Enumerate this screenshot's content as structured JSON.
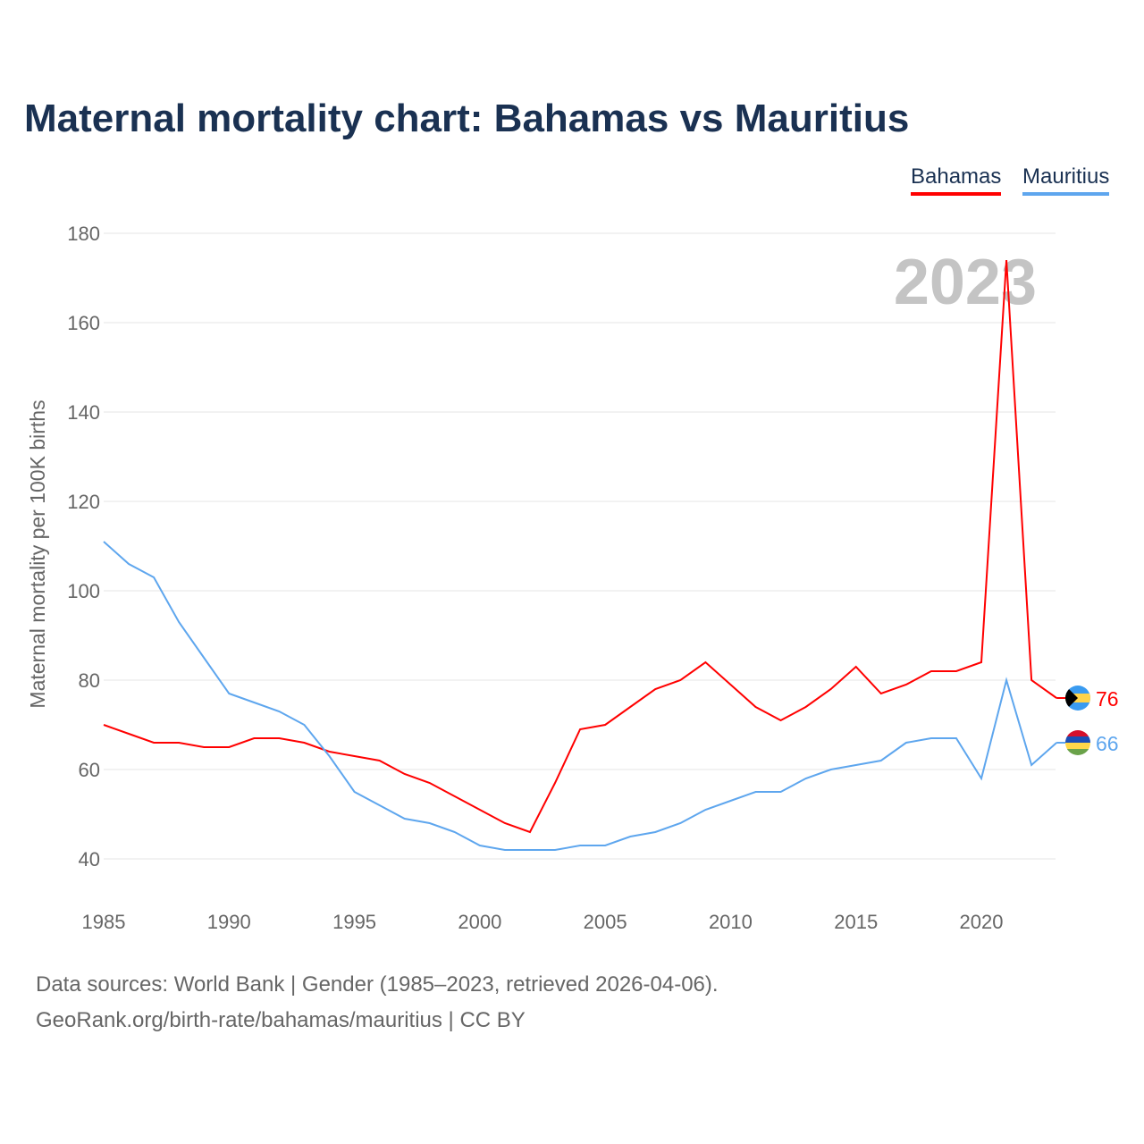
{
  "title": "Maternal mortality chart: Bahamas vs Mauritius",
  "year_watermark": "2023",
  "footer": {
    "line1": "Data sources: World Bank | Gender (1985–2023, retrieved 2026-04-06).",
    "line2": "GeoRank.org/birth-rate/bahamas/mauritius | CC BY"
  },
  "chart_data": {
    "type": "line",
    "title": "Maternal mortality chart: Bahamas vs Mauritius",
    "ylabel": "Maternal mortality per 100K births",
    "xlabel": "",
    "xlim": [
      1985,
      2023
    ],
    "ylim": [
      40,
      180
    ],
    "yticks": [
      40,
      60,
      80,
      100,
      120,
      140,
      160,
      180
    ],
    "xticks": [
      1985,
      1990,
      1995,
      2000,
      2005,
      2010,
      2015,
      2020
    ],
    "legend": "top-right",
    "x": [
      1985,
      1986,
      1987,
      1988,
      1989,
      1990,
      1991,
      1992,
      1993,
      1994,
      1995,
      1996,
      1997,
      1998,
      1999,
      2000,
      2001,
      2002,
      2003,
      2004,
      2005,
      2006,
      2007,
      2008,
      2009,
      2010,
      2011,
      2012,
      2013,
      2014,
      2015,
      2016,
      2017,
      2018,
      2019,
      2020,
      2021,
      2022,
      2023
    ],
    "series": [
      {
        "name": "Bahamas",
        "color": "#ff0000",
        "end_label": "76",
        "values": [
          70,
          68,
          66,
          66,
          65,
          65,
          67,
          67,
          66,
          64,
          63,
          62,
          59,
          57,
          54,
          51,
          48,
          46,
          57,
          69,
          70,
          74,
          78,
          80,
          84,
          79,
          74,
          71,
          74,
          78,
          83,
          77,
          79,
          82,
          82,
          84,
          174,
          80,
          76
        ]
      },
      {
        "name": "Mauritius",
        "color": "#5ea6ee",
        "end_label": "66",
        "values": [
          111,
          106,
          103,
          93,
          85,
          77,
          75,
          73,
          70,
          63,
          55,
          52,
          49,
          48,
          46,
          43,
          42,
          42,
          42,
          43,
          43,
          45,
          46,
          48,
          51,
          53,
          55,
          55,
          58,
          60,
          61,
          62,
          66,
          67,
          67,
          58,
          80,
          61,
          66
        ]
      }
    ]
  }
}
